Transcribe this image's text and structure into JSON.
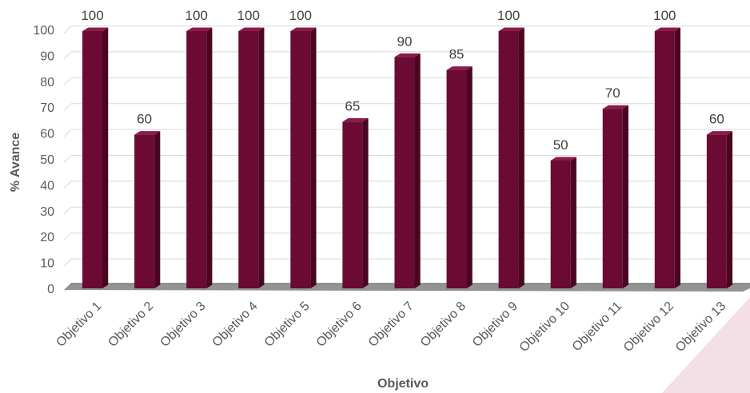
{
  "chart_data": {
    "type": "bar",
    "title": "",
    "xlabel": "Objetivo",
    "ylabel": "% Avance",
    "categories": [
      "Objetivo 1",
      "Objetivo 2",
      "Objetivo 3",
      "Objetivo 4",
      "Objetivo 5",
      "Objetivo 6",
      "Objetivo 7",
      "Objetivo 8",
      "Objetivo 9",
      "Objetivo 10",
      "Objetivo 11",
      "Objetivo 12",
      "Objetivo 13"
    ],
    "values": [
      100,
      60,
      100,
      100,
      100,
      65,
      90,
      85,
      100,
      50,
      70,
      100,
      60
    ],
    "ylim": [
      0,
      100
    ],
    "yticks": [
      0,
      10,
      20,
      30,
      40,
      50,
      60,
      70,
      80,
      90,
      100
    ],
    "grid": true,
    "legend": "none",
    "style": "3d-column"
  },
  "colors": {
    "bar_front": "#6b0a33",
    "bar_side": "#4a0523",
    "bar_top": "#8c1a4a",
    "grid": "#d9d9d9",
    "floor": "#808080",
    "corner_accent": "#f3dfe5"
  }
}
